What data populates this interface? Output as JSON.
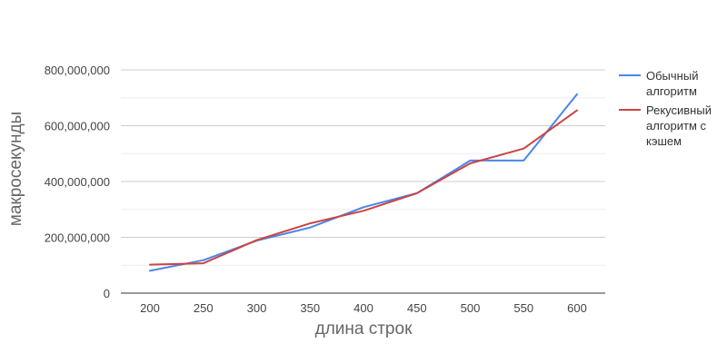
{
  "chart_data": {
    "type": "line",
    "title": "",
    "xlabel": "длина строк",
    "ylabel": "макросекунды",
    "categories": [
      "200",
      "250",
      "300",
      "350",
      "400",
      "450",
      "500",
      "550",
      "600"
    ],
    "x": [
      200,
      250,
      300,
      350,
      400,
      450,
      500,
      550,
      600
    ],
    "ylim": [
      0,
      800000000
    ],
    "yticks": [
      0,
      200000000,
      400000000,
      600000000,
      800000000
    ],
    "ytick_labels": [
      "0",
      "200,000,000",
      "400,000,000",
      "600,000,000",
      "800,000,000"
    ],
    "grid": true,
    "legend_position": "right",
    "series": [
      {
        "name_lines": [
          "Обычный",
          "алгоритм"
        ],
        "color": "#4a86e8",
        "values": [
          80000000,
          118000000,
          188000000,
          235000000,
          308000000,
          358000000,
          475000000,
          475000000,
          713000000
        ]
      },
      {
        "name_lines": [
          "Рекусивный",
          "алгоритм с",
          "кэшем"
        ],
        "color": "#cc4444",
        "values": [
          102000000,
          107000000,
          190000000,
          250000000,
          295000000,
          358000000,
          465000000,
          518000000,
          655000000
        ]
      }
    ]
  }
}
